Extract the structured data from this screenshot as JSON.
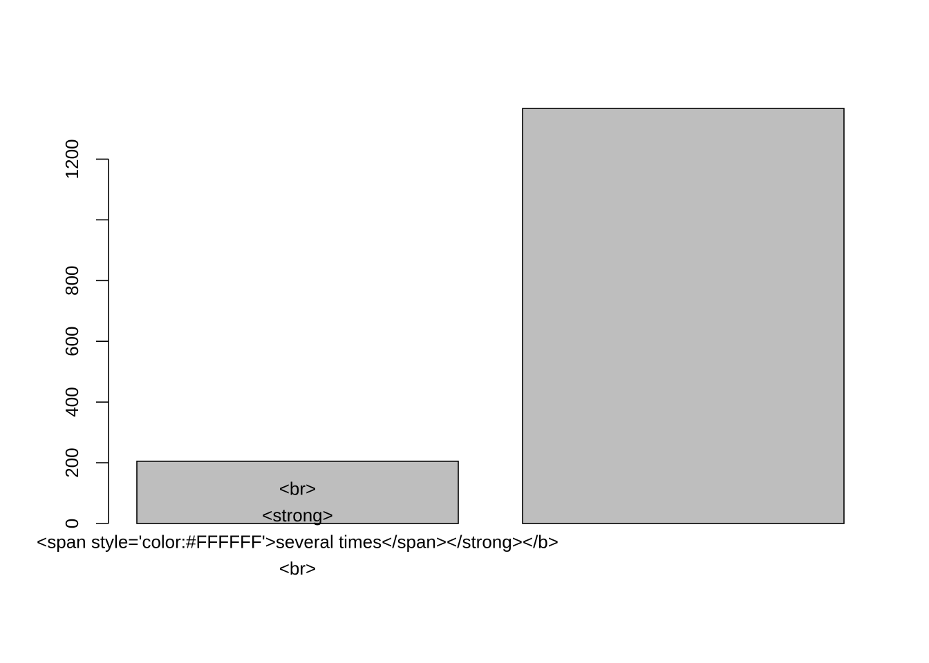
{
  "chart_data": {
    "type": "bar",
    "title": "",
    "xlabel": "",
    "ylabel": "",
    "ylim": [
      0,
      1367
    ],
    "y_ticks": [
      0,
      200,
      400,
      600,
      800,
      1000,
      1200
    ],
    "y_tick_labels": [
      "0",
      "200",
      "400",
      "600",
      "800",
      "",
      "1200"
    ],
    "categories": [
      {
        "lines": [
          "<br>",
          "<strong>",
          "<span style='color:#FFFFFF'>several times</span></strong></b>",
          "<br>"
        ]
      },
      {
        "lines": []
      }
    ],
    "values": [
      205,
      1367
    ],
    "bar_color": "#bebebe",
    "border_color": "#000000",
    "grid": false,
    "legend": "none"
  }
}
